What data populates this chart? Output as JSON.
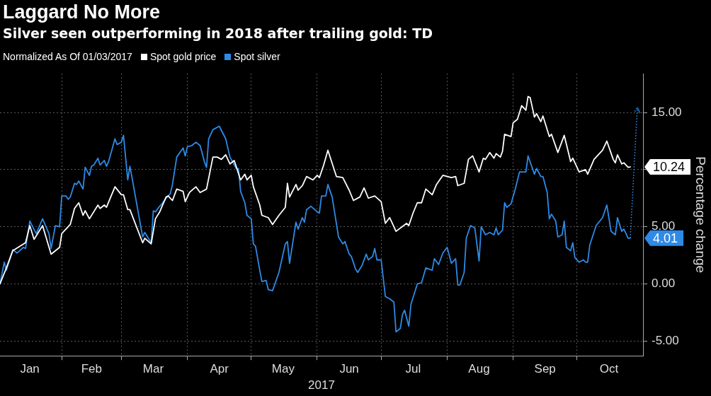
{
  "chart_data": {
    "type": "line",
    "title": "Laggard No More",
    "subtitle": "Silver seen outperforming in 2018 after trailing gold: TD",
    "legend_title": "Normalized As Of 01/03/2017",
    "legend": "top left",
    "grid": true,
    "xlabel": "2017",
    "ylabel": "Percentage change",
    "xlim": [
      "2017-01-03",
      "2017-11-01"
    ],
    "xticks": [
      {
        "value": "2017-01-17",
        "label": "Jan"
      },
      {
        "value": "2017-02-01",
        "label": null
      },
      {
        "value": "2017-02-15",
        "label": "Feb"
      },
      {
        "value": "2017-03-01",
        "label": null
      },
      {
        "value": "2017-03-16",
        "label": "Mar"
      },
      {
        "value": "2017-04-01",
        "label": null
      },
      {
        "value": "2017-04-16",
        "label": "Apr"
      },
      {
        "value": "2017-05-01",
        "label": null
      },
      {
        "value": "2017-05-16",
        "label": "May"
      },
      {
        "value": "2017-06-01",
        "label": null
      },
      {
        "value": "2017-06-16",
        "label": "Jun"
      },
      {
        "value": "2017-07-01",
        "label": null
      },
      {
        "value": "2017-07-16",
        "label": "Jul"
      },
      {
        "value": "2017-08-01",
        "label": null
      },
      {
        "value": "2017-08-16",
        "label": "Aug"
      },
      {
        "value": "2017-09-01",
        "label": null
      },
      {
        "value": "2017-09-16",
        "label": "Sep"
      },
      {
        "value": "2017-10-01",
        "label": null
      },
      {
        "value": "2017-10-16",
        "label": "Oct"
      }
    ],
    "ylim": [
      -6.3,
      18.4
    ],
    "yticks": [
      {
        "value": -5,
        "label": "-5.00"
      },
      {
        "value": 0,
        "label": "0.00"
      },
      {
        "value": 5,
        "label": "5.00"
      },
      {
        "value": 10,
        "label": null
      },
      {
        "value": 15,
        "label": "15.00"
      }
    ],
    "annotations": [
      {
        "text": "10.24",
        "x": "2017-10-26",
        "y": 10.24
      },
      {
        "text": "4.01",
        "x": "2017-10-26",
        "y": 4.01
      }
    ],
    "series": [
      {
        "name": "Spot gold price",
        "color": "#ffffff",
        "x": [
          "2017-01-03",
          "2017-01-06",
          "2017-01-09",
          "2017-01-15",
          "2017-01-17",
          "2017-01-19",
          "2017-01-23",
          "2017-01-27",
          "2017-01-31",
          "2017-02-01",
          "2017-02-05",
          "2017-02-07",
          "2017-02-09",
          "2017-02-11",
          "2017-02-12",
          "2017-02-14",
          "2017-02-18",
          "2017-02-19",
          "2017-02-21",
          "2017-02-22",
          "2017-02-26",
          "2017-03-01",
          "2017-03-02",
          "2017-03-04",
          "2017-03-05",
          "2017-03-11",
          "2017-03-12",
          "2017-03-15",
          "2017-03-17",
          "2017-03-19",
          "2017-03-22",
          "2017-03-23",
          "2017-03-25",
          "2017-03-27",
          "2017-03-30",
          "2017-03-31",
          "2017-04-02",
          "2017-04-05",
          "2017-04-07",
          "2017-04-10",
          "2017-04-13",
          "2017-04-15",
          "2017-04-17",
          "2017-04-19",
          "2017-04-21",
          "2017-04-23",
          "2017-04-26",
          "2017-04-28",
          "2017-04-29",
          "2017-05-01",
          "2017-05-02",
          "2017-05-05",
          "2017-05-06",
          "2017-05-09",
          "2017-05-11",
          "2017-05-14",
          "2017-05-17",
          "2017-05-18",
          "2017-05-19",
          "2017-05-22",
          "2017-05-23",
          "2017-05-25",
          "2017-05-27",
          "2017-05-30",
          "2017-06-01",
          "2017-06-02",
          "2017-06-04",
          "2017-06-06",
          "2017-06-10",
          "2017-06-13",
          "2017-06-16",
          "2017-06-18",
          "2017-06-21",
          "2017-06-23",
          "2017-06-25",
          "2017-06-28",
          "2017-07-01",
          "2017-07-03",
          "2017-07-05",
          "2017-07-08",
          "2017-07-13",
          "2017-07-14",
          "2017-07-16",
          "2017-07-18",
          "2017-07-20",
          "2017-07-22",
          "2017-07-25",
          "2017-07-27",
          "2017-07-30",
          "2017-08-03",
          "2017-08-05",
          "2017-08-06",
          "2017-08-09",
          "2017-08-11",
          "2017-08-13",
          "2017-08-16",
          "2017-08-18",
          "2017-08-19",
          "2017-08-21",
          "2017-08-23",
          "2017-08-24",
          "2017-08-26",
          "2017-08-27",
          "2017-08-28",
          "2017-08-31",
          "2017-09-01",
          "2017-09-03",
          "2017-09-05",
          "2017-09-07",
          "2017-09-08",
          "2017-09-09",
          "2017-09-11",
          "2017-09-12",
          "2017-09-14",
          "2017-09-15",
          "2017-09-16",
          "2017-09-18",
          "2017-09-19",
          "2017-09-22",
          "2017-09-25",
          "2017-09-28",
          "2017-09-29",
          "2017-10-02",
          "2017-10-05",
          "2017-10-06",
          "2017-10-09",
          "2017-10-13",
          "2017-10-15",
          "2017-10-18",
          "2017-10-19",
          "2017-10-20",
          "2017-10-22",
          "2017-10-23",
          "2017-10-25",
          "2017-10-26"
        ],
        "values": [
          0,
          1.4,
          2.9,
          3.6,
          5.1,
          3.9,
          5.1,
          2.6,
          3.2,
          4.4,
          5.2,
          6.6,
          7.1,
          6.0,
          6.4,
          5.7,
          6.9,
          6.6,
          6.9,
          6.7,
          8.5,
          7.8,
          7.8,
          6.5,
          6.5,
          3.6,
          4.0,
          3.5,
          5.7,
          6.3,
          7.6,
          7.7,
          7.3,
          8.3,
          8.1,
          7.2,
          8.0,
          8.5,
          8.0,
          8.3,
          11.1,
          11.1,
          10.9,
          11.3,
          10.5,
          10.8,
          9.1,
          9.6,
          9.1,
          9.5,
          8.5,
          6.9,
          6.0,
          5.8,
          5.2,
          6.0,
          6.7,
          8.8,
          7.6,
          8.7,
          8.2,
          8.6,
          9.4,
          9.1,
          9.5,
          9.3,
          10.4,
          11.7,
          9.4,
          9.3,
          8.2,
          7.3,
          7.6,
          8.4,
          7.5,
          7.7,
          7.2,
          5.3,
          5.8,
          4.6,
          5.3,
          5.1,
          6.2,
          7.1,
          7.1,
          8.3,
          7.8,
          8.7,
          9.5,
          9.3,
          9.4,
          8.6,
          8.8,
          10.9,
          11.2,
          9.8,
          11.0,
          10.9,
          11.5,
          11.0,
          11.4,
          11.1,
          11.6,
          13.1,
          12.9,
          14.1,
          14.4,
          15.6,
          15.2,
          16.4,
          16.3,
          14.6,
          14.9,
          14.2,
          14.7,
          14.1,
          12.9,
          13.1,
          11.5,
          13.0,
          10.7,
          11.0,
          9.8,
          10.0,
          9.6,
          10.9,
          11.7,
          12.5,
          10.9,
          10.6,
          11.3,
          10.5,
          10.6,
          10.2,
          10.24
        ]
      },
      {
        "name": "Spot silver",
        "color": "#2e8ae6",
        "x": [
          "2017-01-03",
          "2017-01-05",
          "2017-01-06",
          "2017-01-09",
          "2017-01-11",
          "2017-01-14",
          "2017-01-15",
          "2017-01-17",
          "2017-01-20",
          "2017-01-23",
          "2017-01-26",
          "2017-01-27",
          "2017-01-29",
          "2017-01-31",
          "2017-02-01",
          "2017-02-03",
          "2017-02-04",
          "2017-02-05",
          "2017-02-07",
          "2017-02-08",
          "2017-02-09",
          "2017-02-11",
          "2017-02-12",
          "2017-02-14",
          "2017-02-15",
          "2017-02-16",
          "2017-02-18",
          "2017-02-19",
          "2017-02-21",
          "2017-02-22",
          "2017-02-23",
          "2017-02-26",
          "2017-02-27",
          "2017-03-01",
          "2017-03-02",
          "2017-03-04",
          "2017-03-05",
          "2017-03-06",
          "2017-03-11",
          "2017-03-12",
          "2017-03-14",
          "2017-03-15",
          "2017-03-16",
          "2017-03-17",
          "2017-03-19",
          "2017-03-20",
          "2017-03-22",
          "2017-03-24",
          "2017-03-25",
          "2017-03-27",
          "2017-03-30",
          "2017-03-31",
          "2017-04-01",
          "2017-04-03",
          "2017-04-05",
          "2017-04-07",
          "2017-04-09",
          "2017-04-10",
          "2017-04-11",
          "2017-04-13",
          "2017-04-16",
          "2017-04-19",
          "2017-04-21",
          "2017-04-24",
          "2017-04-25",
          "2017-04-26",
          "2017-04-28",
          "2017-04-29",
          "2017-05-01",
          "2017-05-02",
          "2017-05-03",
          "2017-05-05",
          "2017-05-06",
          "2017-05-08",
          "2017-05-09",
          "2017-05-11",
          "2017-05-14",
          "2017-05-17",
          "2017-05-18",
          "2017-05-19",
          "2017-05-22",
          "2017-05-23",
          "2017-05-25",
          "2017-05-26",
          "2017-05-27",
          "2017-05-29",
          "2017-06-01",
          "2017-06-02",
          "2017-06-03",
          "2017-06-05",
          "2017-06-06",
          "2017-06-08",
          "2017-06-11",
          "2017-06-13",
          "2017-06-14",
          "2017-06-16",
          "2017-06-17",
          "2017-06-19",
          "2017-06-20",
          "2017-06-22",
          "2017-06-24",
          "2017-06-25",
          "2017-06-27",
          "2017-06-28",
          "2017-06-29",
          "2017-07-01",
          "2017-07-03",
          "2017-07-05",
          "2017-07-07",
          "2017-07-08",
          "2017-07-10",
          "2017-07-11",
          "2017-07-12",
          "2017-07-14",
          "2017-07-15",
          "2017-07-18",
          "2017-07-20",
          "2017-07-22",
          "2017-07-25",
          "2017-07-26",
          "2017-07-28",
          "2017-07-30",
          "2017-08-01",
          "2017-08-03",
          "2017-08-05",
          "2017-08-06",
          "2017-08-07",
          "2017-08-09",
          "2017-08-10",
          "2017-08-12",
          "2017-08-14",
          "2017-08-16",
          "2017-08-17",
          "2017-08-19",
          "2017-08-21",
          "2017-08-23",
          "2017-08-24",
          "2017-08-25",
          "2017-08-27",
          "2017-08-28",
          "2017-08-29",
          "2017-08-31",
          "2017-09-02",
          "2017-09-04",
          "2017-09-07",
          "2017-09-08",
          "2017-09-11",
          "2017-09-12",
          "2017-09-14",
          "2017-09-15",
          "2017-09-17",
          "2017-09-18",
          "2017-09-19",
          "2017-09-21",
          "2017-09-22",
          "2017-09-24",
          "2017-09-25",
          "2017-09-26",
          "2017-09-28",
          "2017-09-29",
          "2017-09-30",
          "2017-10-02",
          "2017-10-04",
          "2017-10-05",
          "2017-10-06",
          "2017-10-07",
          "2017-10-10",
          "2017-10-13",
          "2017-10-15",
          "2017-10-17",
          "2017-10-19",
          "2017-10-20",
          "2017-10-22",
          "2017-10-23",
          "2017-10-25",
          "2017-10-26"
        ],
        "values": [
          0,
          1.9,
          1.2,
          3.0,
          2.7,
          3.2,
          3.1,
          5.5,
          4.4,
          5.7,
          4.4,
          3.1,
          5.1,
          5.0,
          7.7,
          7.7,
          7.4,
          7.6,
          8.8,
          8.7,
          9.0,
          8.3,
          10.2,
          9.5,
          10.3,
          10.4,
          11.0,
          10.4,
          10.8,
          10.3,
          10.7,
          12.7,
          12.2,
          12.4,
          13.0,
          9.1,
          10.3,
          9.3,
          4.1,
          4.5,
          3.9,
          3.6,
          6.4,
          6.3,
          6.8,
          7.0,
          7.5,
          7.9,
          8.7,
          11.1,
          11.9,
          11.2,
          12.0,
          12.1,
          12.4,
          12.1,
          10.7,
          10.2,
          12.7,
          13.5,
          13.8,
          12.7,
          11.1,
          10.1,
          10.1,
          8.1,
          7.1,
          6.0,
          5.7,
          3.5,
          3.3,
          1.2,
          0.2,
          0.3,
          -0.5,
          -0.6,
          1.0,
          3.5,
          3.7,
          1.8,
          5.4,
          4.8,
          5.8,
          5.4,
          6.5,
          6.8,
          6.3,
          6.2,
          7.7,
          7.7,
          8.7,
          7.6,
          4.1,
          3.5,
          3.7,
          2.6,
          2.4,
          1.3,
          1.0,
          1.6,
          2.6,
          2.1,
          2.4,
          3.1,
          2.1,
          2.1,
          -1.1,
          -1.3,
          -1.6,
          -4.2,
          -3.9,
          -2.7,
          -2.3,
          -3.7,
          -1.8,
          0.0,
          0.1,
          1.4,
          1.2,
          2.2,
          1.7,
          2.7,
          3.2,
          1.8,
          2.2,
          -0.1,
          -0.1,
          1.0,
          4.0,
          5.1,
          4.9,
          2.0,
          5.0,
          4.3,
          4.5,
          4.3,
          4.9,
          4.3,
          4.7,
          7.1,
          6.7,
          7.0,
          8.3,
          9.8,
          9.8,
          11.2,
          9.6,
          10.1,
          9.4,
          9.4,
          8.0,
          5.7,
          6.1,
          5.5,
          4.1,
          4.3,
          5.5,
          3.2,
          2.9,
          3.6,
          2.3,
          1.9,
          2.1,
          1.9,
          1.9,
          3.4,
          5.1,
          5.8,
          6.9,
          4.6,
          4.3,
          5.8,
          4.6,
          4.8,
          4.0,
          4.01
        ]
      }
    ]
  }
}
